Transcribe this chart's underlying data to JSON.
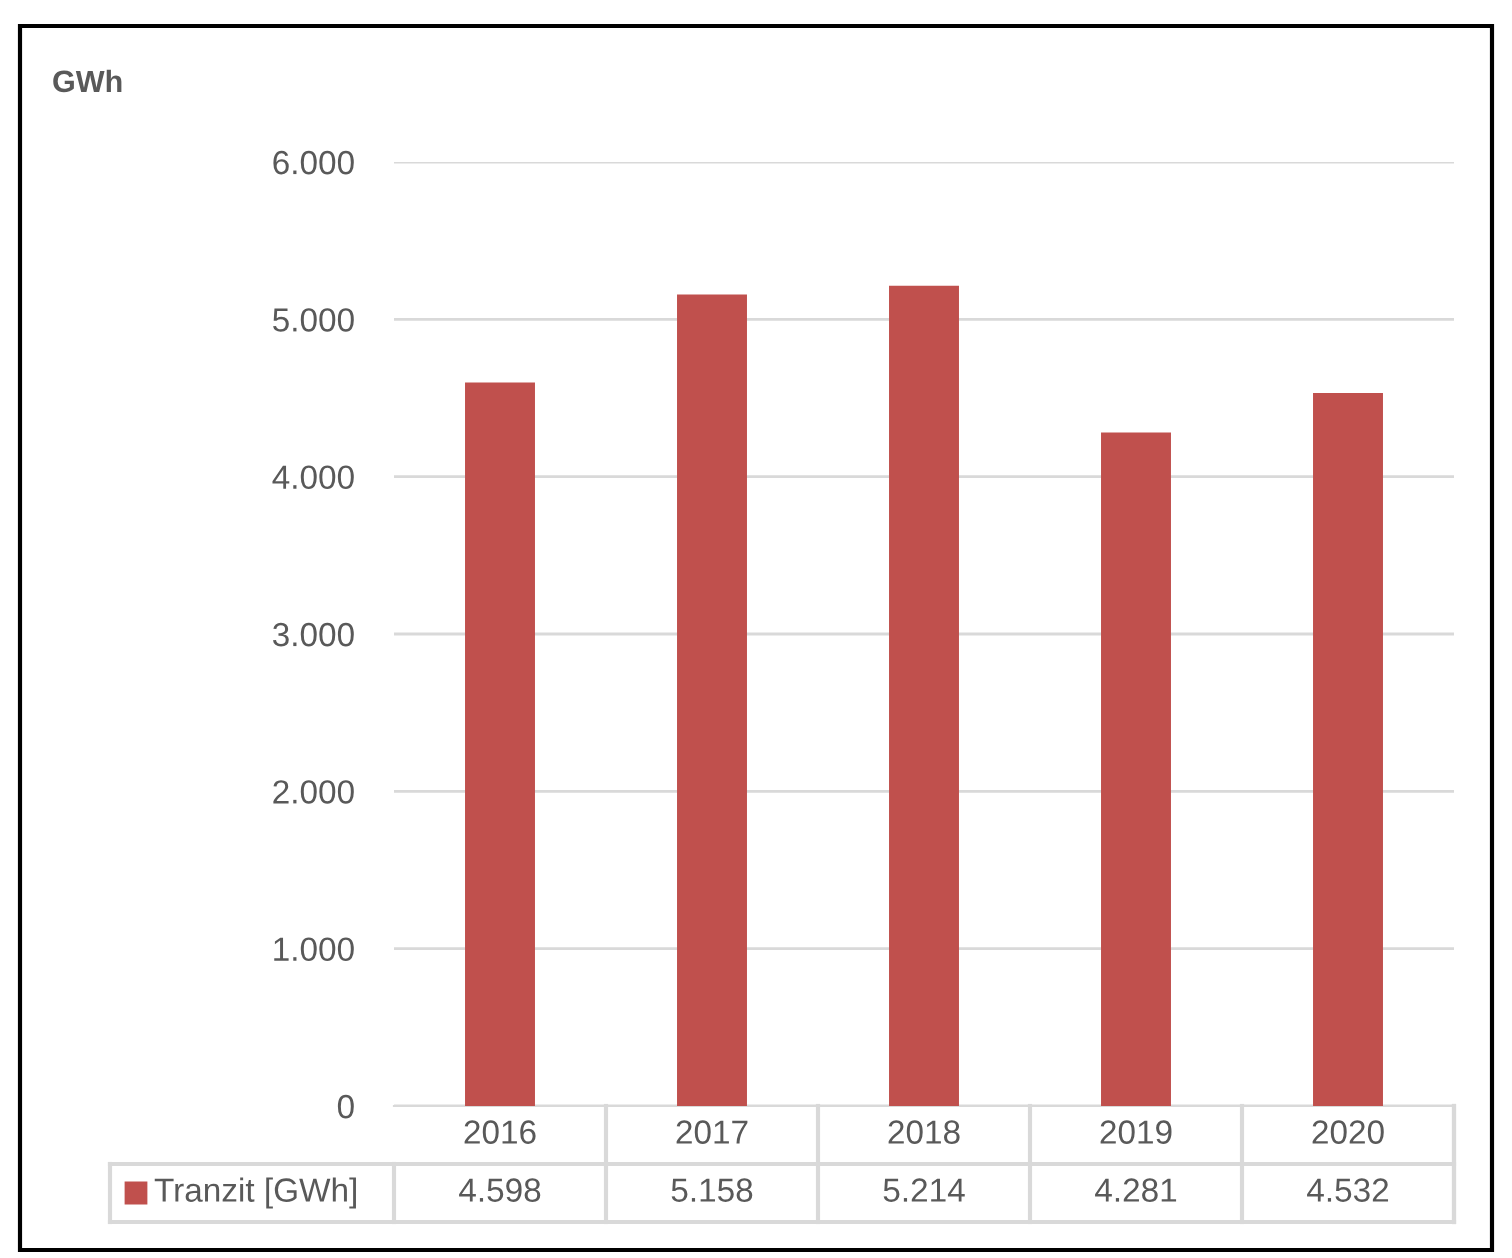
{
  "chart_data": {
    "type": "bar",
    "annotations": [
      "GWh"
    ],
    "categories": [
      "2016",
      "2017",
      "2018",
      "2019",
      "2020"
    ],
    "series": [
      {
        "name": "Tranzit [GWh]",
        "color": "#c0504d",
        "values": [
          4598,
          5158,
          5214,
          4281,
          4532
        ],
        "value_labels": [
          "4.598",
          "5.158",
          "5.214",
          "4.281",
          "4.532"
        ]
      }
    ],
    "ylim": [
      0,
      6000
    ],
    "yticks": [
      {
        "value": 0,
        "label": "0"
      },
      {
        "value": 1000,
        "label": "1.000"
      },
      {
        "value": 2000,
        "label": "2.000"
      },
      {
        "value": 3000,
        "label": "3.000"
      },
      {
        "value": 4000,
        "label": "4.000"
      },
      {
        "value": 5000,
        "label": "5.000"
      },
      {
        "value": 6000,
        "label": "6.000"
      }
    ],
    "grid": "y",
    "legend": "bottom"
  }
}
